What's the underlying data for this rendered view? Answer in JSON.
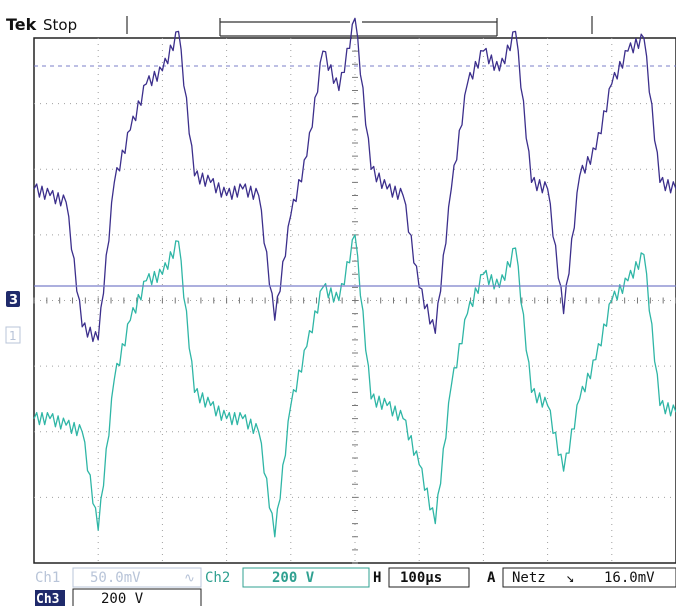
{
  "header": {
    "brand": "Tek",
    "state": "Stop"
  },
  "markers": {
    "ch3": "3",
    "ch1": "1"
  },
  "readout": {
    "ch1_label": "Ch1",
    "ch1_scale": "50.0mV",
    "ch1_coupling": "∿",
    "ch2_label": "Ch2",
    "ch2_scale": "200 V",
    "horiz_label": "H",
    "horiz_scale": "100µs",
    "trig_label": "A",
    "trig_source": "Netz",
    "trig_slope": "↘",
    "trig_level": "16.0mV",
    "ch3_label": "Ch3",
    "ch3_scale": "200 V"
  },
  "colors": {
    "grid": "#a0a0a0",
    "frame": "#222222",
    "trace_top": "#3c2f8c",
    "trace_bottom": "#2fb6a6",
    "ch1_dim": "#b8c4d8",
    "cursor_line": "#7b7fc9"
  },
  "chart_data": {
    "type": "line",
    "title": "",
    "xlabel": "",
    "ylabel": "",
    "x_divisions": 10,
    "y_divisions": 8,
    "x_units": "µs",
    "x_per_division": 100,
    "x": [
      0,
      25,
      50,
      75,
      100,
      125,
      150,
      175,
      200,
      225,
      250,
      275,
      300,
      325,
      350,
      375,
      400,
      425,
      450,
      475,
      500,
      525,
      550,
      575,
      600,
      625,
      650,
      675,
      700,
      725,
      750,
      775,
      800,
      825,
      850,
      875,
      900,
      925,
      950,
      975,
      1000
    ],
    "series": [
      {
        "values": [
          1.7,
          1.6,
          1.5,
          -0.4,
          -0.6,
          1.8,
          2.6,
          3.3,
          3.5,
          4.1,
          1.9,
          1.8,
          1.6,
          1.7,
          1.6,
          -0.3,
          1.3,
          2.2,
          3.8,
          3.2,
          4.3,
          2.0,
          1.7,
          1.6,
          0.2,
          -0.5,
          1.7,
          3.3,
          3.8,
          3.5,
          4.1,
          1.8,
          1.7,
          -0.2,
          1.9,
          2.3,
          3.3,
          3.8,
          4.0,
          1.8,
          1.7
        ]
      },
      {
        "values": [
          -1.8,
          -1.8,
          -1.9,
          -2.0,
          -3.5,
          -1.2,
          -0.3,
          0.3,
          0.4,
          0.9,
          -1.4,
          -1.6,
          -1.8,
          -1.8,
          -2.0,
          -3.6,
          -1.6,
          -0.7,
          0.2,
          0.0,
          1.0,
          -1.5,
          -1.6,
          -1.8,
          -2.5,
          -3.4,
          -1.3,
          -0.2,
          0.4,
          0.2,
          0.8,
          -1.4,
          -1.6,
          -2.6,
          -1.5,
          -0.9,
          0.0,
          0.3,
          0.7,
          -1.6,
          -1.7
        ]
      }
    ],
    "ylim": [
      -4,
      4
    ],
    "grid": true
  }
}
